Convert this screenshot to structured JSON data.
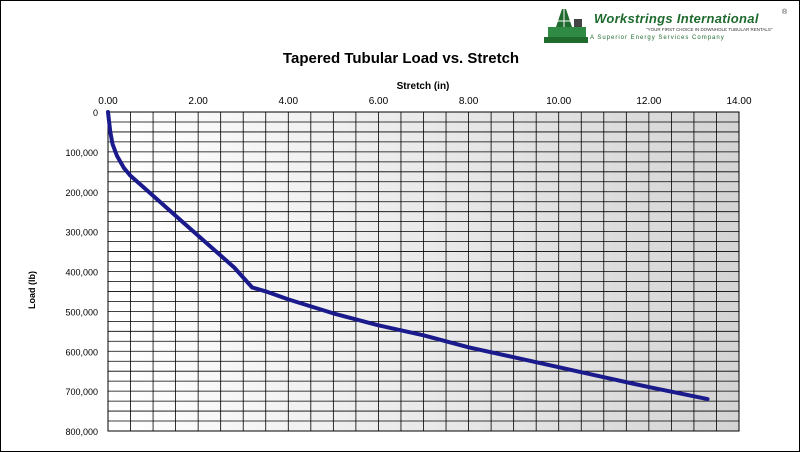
{
  "brand": {
    "name": "Workstrings International",
    "registered_mark": "®",
    "tagline": "\"YOUR FIRST CHOICE IN DOWNHOLE TUBULAR RENTALS\"",
    "subtitle": "A Superior Energy Services Company",
    "color": "#1f6b2e"
  },
  "chart_data": {
    "type": "line",
    "title": "Tapered Tubular Load vs. Stretch",
    "xlabel": "Stretch (in)",
    "ylabel": "Load (lb)",
    "xlim": [
      0,
      14
    ],
    "ylim": [
      0,
      800000
    ],
    "x_axis_position": "top",
    "y_axis_reversed": true,
    "grid": true,
    "x_ticks": [
      0,
      2,
      4,
      6,
      8,
      10,
      12,
      14
    ],
    "x_tick_labels": [
      "0.00",
      "2.00",
      "4.00",
      "6.00",
      "8.00",
      "10.00",
      "12.00",
      "14.00"
    ],
    "y_ticks": [
      0,
      100000,
      200000,
      300000,
      400000,
      500000,
      600000,
      700000,
      800000
    ],
    "y_tick_labels": [
      "0",
      "100,000",
      "200,000",
      "300,000",
      "400,000",
      "500,000",
      "600,000",
      "700,000",
      "800,000"
    ],
    "series_color": "#1a1a8c",
    "series": [
      {
        "x": [
          0.0,
          0.02,
          0.05,
          0.1,
          0.2,
          0.35,
          0.5,
          0.8,
          1.2,
          1.6,
          2.0,
          2.4,
          2.8,
          3.2,
          3.5,
          4.0,
          5.0,
          6.0,
          7.0,
          8.0,
          9.0,
          10.0,
          11.0,
          12.0,
          13.3
        ],
        "y": [
          0,
          20000,
          50000,
          80000,
          110000,
          140000,
          160000,
          190000,
          230000,
          270000,
          310000,
          350000,
          390000,
          440000,
          450000,
          470000,
          505000,
          535000,
          560000,
          590000,
          615000,
          640000,
          665000,
          690000,
          720000
        ]
      }
    ]
  }
}
